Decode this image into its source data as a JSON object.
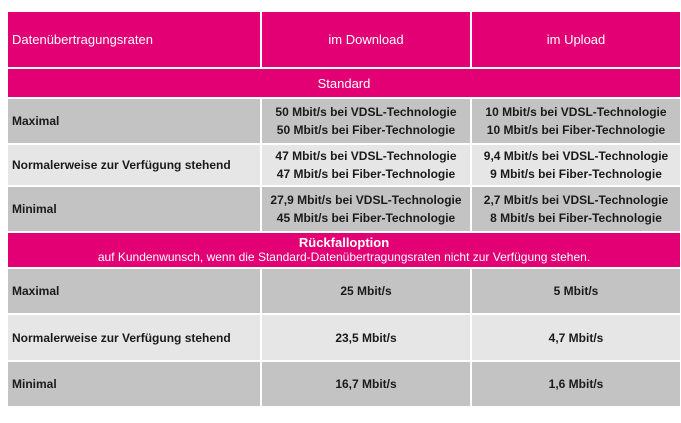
{
  "header": {
    "col_label": "Datenübertragungsraten",
    "col_download": "im Download",
    "col_upload": "im Upload"
  },
  "standard": {
    "title": "Standard",
    "rows": [
      {
        "label": "Maximal",
        "download": [
          "50 Mbit/s bei VDSL-Technologie",
          "50 Mbit/s bei Fiber-Technologie"
        ],
        "upload": [
          "10 Mbit/s bei VDSL-Technologie",
          "10 Mbit/s bei Fiber-Technologie"
        ]
      },
      {
        "label": "Normalerweise zur Verfügung stehend",
        "download": [
          "47 Mbit/s bei VDSL-Technologie",
          "47 Mbit/s bei Fiber-Technologie"
        ],
        "upload": [
          "9,4 Mbit/s bei VDSL-Technologie",
          "9 Mbit/s bei Fiber-Technologie"
        ]
      },
      {
        "label": "Minimal",
        "download": [
          "27,9 Mbit/s bei VDSL-Technologie",
          "45 Mbit/s bei Fiber-Technologie"
        ],
        "upload": [
          "2,7 Mbit/s bei VDSL-Technologie",
          "8 Mbit/s bei Fiber-Technologie"
        ]
      }
    ]
  },
  "fallback": {
    "title": "Rückfalloption",
    "subtitle": "auf Kundenwunsch, wenn die Standard-Datenübertragungsraten nicht zur Verfügung stehen.",
    "rows": [
      {
        "label": "Maximal",
        "download": "25 Mbit/s",
        "upload": "5 Mbit/s"
      },
      {
        "label": "Normalerweise zur Verfügung stehend",
        "download": "23,5 Mbit/s",
        "upload": "4,7 Mbit/s"
      },
      {
        "label": "Minimal",
        "download": "16,7 Mbit/s",
        "upload": "1,6 Mbit/s"
      }
    ]
  },
  "colors": {
    "magenta": "#e20074",
    "row_dark": "#c3c3c3",
    "row_light": "#e6e6e6"
  }
}
